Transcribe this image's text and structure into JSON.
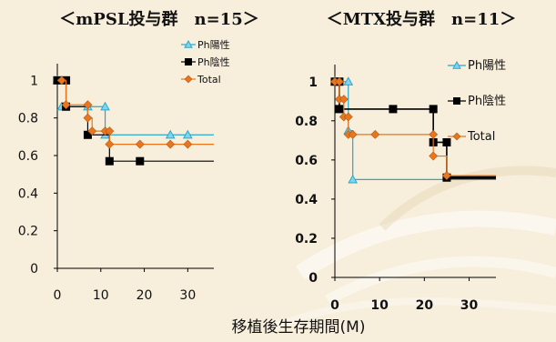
{
  "xlabel": "移植後生存期間(M)",
  "colors": {
    "ph_pos": "#2aa8cc",
    "ph_neg": "#000000",
    "total": "#e8761e",
    "background": "#f7eedc"
  },
  "chart_data": [
    {
      "type": "line",
      "step": true,
      "title": "＜mPSL投与群　n=15＞",
      "xlim": [
        0,
        36
      ],
      "ylim": [
        0,
        1.05
      ],
      "xticks": [
        0,
        10,
        20,
        30
      ],
      "yticks": [
        0,
        0.2,
        0.4,
        0.6,
        0.8,
        1
      ],
      "ytick_labels": [
        "0",
        "0.2",
        "0.4",
        "0.6",
        "0.8",
        "1"
      ],
      "legend_position": "top-right",
      "series": [
        {
          "name": "Ph陽性",
          "marker": "triangle",
          "color_key": "ph_pos",
          "x": [
            0,
            2,
            2,
            7,
            7,
            11,
            11,
            36
          ],
          "y": [
            1,
            1,
            0.86,
            0.86,
            0.86,
            0.86,
            0.71,
            0.71
          ],
          "markers": [
            [
              0,
              1
            ],
            [
              1,
              0.86
            ],
            [
              7,
              0.86
            ],
            [
              11,
              0.86
            ],
            [
              11,
              0.71
            ],
            [
              26,
              0.71
            ],
            [
              30,
              0.71
            ]
          ]
        },
        {
          "name": "Ph陰性",
          "marker": "square",
          "color_key": "ph_neg",
          "x": [
            0,
            2,
            2,
            7,
            7,
            12,
            12,
            36
          ],
          "y": [
            1,
            1,
            0.86,
            0.86,
            0.71,
            0.71,
            0.57,
            0.57
          ],
          "markers": [
            [
              0,
              1
            ],
            [
              2,
              1
            ],
            [
              2,
              0.86
            ],
            [
              7,
              0.71
            ],
            [
              12,
              0.57
            ],
            [
              19,
              0.57
            ]
          ]
        },
        {
          "name": "Total",
          "marker": "diamond",
          "color_key": "total",
          "x": [
            0,
            2,
            2,
            7,
            7,
            8,
            8,
            11,
            11,
            12,
            12,
            36
          ],
          "y": [
            1,
            1,
            0.87,
            0.87,
            0.8,
            0.8,
            0.73,
            0.73,
            0.73,
            0.73,
            0.66,
            0.66
          ],
          "markers": [
            [
              1,
              1
            ],
            [
              2,
              0.87
            ],
            [
              7,
              0.87
            ],
            [
              7,
              0.8
            ],
            [
              8,
              0.73
            ],
            [
              11,
              0.73
            ],
            [
              12,
              0.73
            ],
            [
              12,
              0.66
            ],
            [
              19,
              0.66
            ],
            [
              26,
              0.66
            ],
            [
              30,
              0.66
            ]
          ]
        }
      ]
    },
    {
      "type": "line",
      "step": true,
      "title": "＜MTX投与群　n=11＞",
      "xlim": [
        0,
        36
      ],
      "ylim": [
        0,
        1.05
      ],
      "xticks": [
        0,
        10,
        20,
        30
      ],
      "yticks": [
        0,
        0.2,
        0.4,
        0.6,
        0.8,
        1
      ],
      "ytick_labels": [
        "0",
        "0.2",
        "0.4",
        "0.6",
        "0.8",
        "1"
      ],
      "legend_position": "right",
      "series": [
        {
          "name": "Ph陽性",
          "marker": "triangle",
          "color_key": "ph_pos",
          "x": [
            0,
            3,
            3,
            4,
            4,
            36
          ],
          "y": [
            1,
            1,
            0.75,
            0.75,
            0.5,
            0.5
          ],
          "markers": [
            [
              0,
              1
            ],
            [
              3,
              1
            ],
            [
              3,
              0.75
            ],
            [
              4,
              0.5
            ]
          ]
        },
        {
          "name": "Ph陰性",
          "marker": "square",
          "color_key": "ph_neg",
          "x": [
            0,
            1,
            1,
            22,
            22,
            25,
            25,
            36
          ],
          "y": [
            1,
            1,
            0.86,
            0.86,
            0.69,
            0.69,
            0.51,
            0.51
          ],
          "markers": [
            [
              0,
              1
            ],
            [
              1,
              1
            ],
            [
              1,
              0.86
            ],
            [
              13,
              0.86
            ],
            [
              22,
              0.86
            ],
            [
              22,
              0.69
            ],
            [
              25,
              0.69
            ],
            [
              25,
              0.51
            ]
          ]
        },
        {
          "name": "Total",
          "marker": "diamond",
          "color_key": "total",
          "x": [
            0,
            1,
            1,
            2,
            2,
            3,
            3,
            4,
            4,
            22,
            22,
            25,
            25,
            36
          ],
          "y": [
            1,
            1,
            0.91,
            0.91,
            0.82,
            0.82,
            0.73,
            0.73,
            0.73,
            0.73,
            0.62,
            0.62,
            0.52,
            0.52
          ],
          "markers": [
            [
              0,
              1
            ],
            [
              1,
              1
            ],
            [
              1,
              0.91
            ],
            [
              2,
              0.91
            ],
            [
              2,
              0.82
            ],
            [
              3,
              0.82
            ],
            [
              3,
              0.73
            ],
            [
              4,
              0.73
            ],
            [
              9,
              0.73
            ],
            [
              22,
              0.73
            ],
            [
              22,
              0.62
            ],
            [
              25,
              0.52
            ]
          ]
        }
      ]
    }
  ]
}
